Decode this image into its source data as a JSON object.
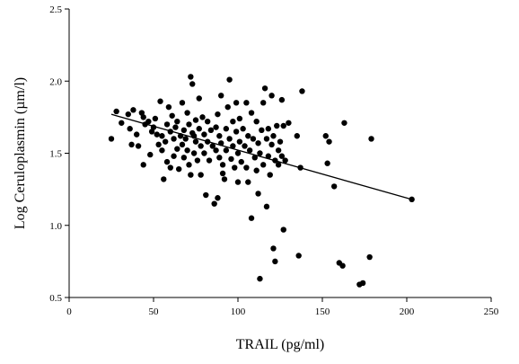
{
  "chart_data": {
    "type": "scatter",
    "title": "",
    "xlabel": "TRAIL (pg/ml)",
    "ylabel": "Log Ceruloplasmin (µm/l)",
    "xlim": [
      0,
      250
    ],
    "ylim": [
      0.5,
      2.5
    ],
    "x_ticks": [
      0,
      50,
      100,
      150,
      200,
      250
    ],
    "y_ticks": [
      0.5,
      1.0,
      1.5,
      2.0,
      2.5
    ],
    "x_tick_labels": [
      "0",
      "50",
      "100",
      "150",
      "200",
      "250"
    ],
    "y_tick_labels": [
      "0.5",
      "1.0",
      "1.5",
      "2.0",
      "2.5"
    ],
    "grid": false,
    "legend": "none",
    "trendline": {
      "x": [
        25,
        203
      ],
      "y": [
        1.77,
        1.18
      ]
    },
    "points": [
      [
        25,
        1.6
      ],
      [
        28,
        1.79
      ],
      [
        31,
        1.71
      ],
      [
        35,
        1.77
      ],
      [
        36,
        1.67
      ],
      [
        37,
        1.56
      ],
      [
        38,
        1.8
      ],
      [
        40,
        1.63
      ],
      [
        41,
        1.55
      ],
      [
        43,
        1.78
      ],
      [
        44,
        1.75
      ],
      [
        44,
        1.42
      ],
      [
        45,
        1.7
      ],
      [
        47,
        1.72
      ],
      [
        48,
        1.49
      ],
      [
        49,
        1.65
      ],
      [
        50,
        1.68
      ],
      [
        51,
        1.74
      ],
      [
        52,
        1.63
      ],
      [
        53,
        1.56
      ],
      [
        54,
        1.86
      ],
      [
        55,
        1.62
      ],
      [
        55,
        1.52
      ],
      [
        56,
        1.32
      ],
      [
        57,
        1.58
      ],
      [
        58,
        1.7
      ],
      [
        58,
        1.44
      ],
      [
        59,
        1.82
      ],
      [
        60,
        1.65
      ],
      [
        60,
        1.4
      ],
      [
        61,
        1.76
      ],
      [
        62,
        1.6
      ],
      [
        62,
        1.48
      ],
      [
        63,
        1.68
      ],
      [
        64,
        1.72
      ],
      [
        64,
        1.53
      ],
      [
        65,
        1.39
      ],
      [
        66,
        1.62
      ],
      [
        67,
        1.85
      ],
      [
        67,
        1.56
      ],
      [
        68,
        1.66
      ],
      [
        68,
        1.47
      ],
      [
        69,
        1.6
      ],
      [
        70,
        1.78
      ],
      [
        70,
        1.52
      ],
      [
        71,
        1.7
      ],
      [
        71,
        1.42
      ],
      [
        72,
        2.03
      ],
      [
        72,
        1.35
      ],
      [
        73,
        1.98
      ],
      [
        73,
        1.64
      ],
      [
        74,
        1.5
      ],
      [
        74,
        1.62
      ],
      [
        75,
        1.73
      ],
      [
        75,
        1.58
      ],
      [
        76,
        1.45
      ],
      [
        77,
        1.88
      ],
      [
        77,
        1.67
      ],
      [
        78,
        1.55
      ],
      [
        78,
        1.35
      ],
      [
        79,
        1.75
      ],
      [
        80,
        1.63
      ],
      [
        80,
        1.5
      ],
      [
        81,
        1.21
      ],
      [
        82,
        1.72
      ],
      [
        82,
        1.58
      ],
      [
        83,
        1.45
      ],
      [
        84,
        1.66
      ],
      [
        85,
        1.55
      ],
      [
        86,
        1.15
      ],
      [
        87,
        1.68
      ],
      [
        87,
        1.52
      ],
      [
        88,
        1.77
      ],
      [
        88,
        1.19
      ],
      [
        89,
        1.62
      ],
      [
        89,
        1.47
      ],
      [
        90,
        1.9
      ],
      [
        90,
        1.57
      ],
      [
        91,
        1.42
      ],
      [
        91,
        1.36
      ],
      [
        92,
        1.32
      ],
      [
        93,
        1.67
      ],
      [
        93,
        1.52
      ],
      [
        94,
        1.82
      ],
      [
        95,
        2.01
      ],
      [
        95,
        1.6
      ],
      [
        96,
        1.46
      ],
      [
        97,
        1.72
      ],
      [
        97,
        1.55
      ],
      [
        98,
        1.4
      ],
      [
        99,
        1.85
      ],
      [
        99,
        1.65
      ],
      [
        100,
        1.5
      ],
      [
        100,
        1.3
      ],
      [
        101,
        1.74
      ],
      [
        101,
        1.58
      ],
      [
        102,
        1.44
      ],
      [
        103,
        1.67
      ],
      [
        104,
        1.55
      ],
      [
        105,
        1.85
      ],
      [
        105,
        1.4
      ],
      [
        106,
        1.62
      ],
      [
        106,
        1.3
      ],
      [
        107,
        1.52
      ],
      [
        108,
        1.78
      ],
      [
        108,
        1.05
      ],
      [
        109,
        1.6
      ],
      [
        110,
        1.47
      ],
      [
        111,
        1.72
      ],
      [
        111,
        1.38
      ],
      [
        112,
        1.57
      ],
      [
        112,
        1.22
      ],
      [
        113,
        0.63
      ],
      [
        113,
        1.5
      ],
      [
        114,
        1.66
      ],
      [
        115,
        1.85
      ],
      [
        115,
        1.42
      ],
      [
        116,
        1.95
      ],
      [
        117,
        1.6
      ],
      [
        117,
        1.13
      ],
      [
        118,
        1.67
      ],
      [
        118,
        1.48
      ],
      [
        119,
        1.35
      ],
      [
        120,
        1.56
      ],
      [
        120,
        1.9
      ],
      [
        121,
        1.62
      ],
      [
        121,
        0.84
      ],
      [
        122,
        1.45
      ],
      [
        122,
        0.75
      ],
      [
        123,
        1.69
      ],
      [
        124,
        1.52
      ],
      [
        124,
        1.42
      ],
      [
        125,
        1.58
      ],
      [
        126,
        1.87
      ],
      [
        126,
        1.48
      ],
      [
        127,
        0.97
      ],
      [
        127,
        1.69
      ],
      [
        128,
        1.45
      ],
      [
        130,
        1.71
      ],
      [
        135,
        1.62
      ],
      [
        136,
        0.79
      ],
      [
        137,
        1.4
      ],
      [
        138,
        1.93
      ],
      [
        152,
        1.62
      ],
      [
        153,
        1.43
      ],
      [
        154,
        1.58
      ],
      [
        157,
        1.27
      ],
      [
        160,
        0.74
      ],
      [
        162,
        0.72
      ],
      [
        163,
        1.71
      ],
      [
        172,
        0.59
      ],
      [
        174,
        0.6
      ],
      [
        178,
        0.78
      ],
      [
        179,
        1.6
      ],
      [
        203,
        1.18
      ]
    ]
  }
}
